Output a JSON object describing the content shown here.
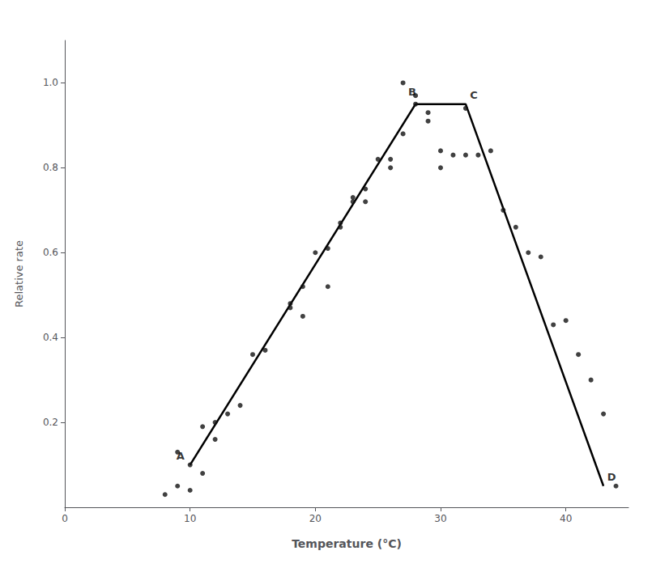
{
  "chart_data": {
    "type": "line",
    "xlabel": "Temperature (°C)",
    "ylabel": "Relative rate",
    "xlim": [
      0,
      45
    ],
    "ylim": [
      0,
      1.1
    ],
    "xticks": [
      0,
      10,
      20,
      30,
      40
    ],
    "yticks": [
      0.2,
      0.4,
      0.6,
      0.8,
      {
        "value": 1,
        "label": "1.0"
      }
    ],
    "grid": false,
    "series": [
      {
        "type": "line",
        "color": "#000000",
        "x": [
          10,
          28,
          32,
          43
        ],
        "values": [
          0.1,
          0.95,
          0.95,
          0.05
        ]
      },
      {
        "type": "scatter",
        "color": "#111111",
        "x": [
          8,
          9,
          9,
          10,
          10,
          11,
          11,
          12,
          12,
          13,
          14,
          15,
          16,
          18,
          18,
          19,
          19,
          20,
          21,
          21,
          22,
          22,
          23,
          23,
          24,
          24,
          25,
          26,
          26,
          27,
          27,
          28,
          28,
          29,
          29,
          30,
          30,
          31,
          32,
          32,
          33,
          34,
          35,
          36,
          37,
          38,
          39,
          40,
          41,
          42,
          43,
          44
        ],
        "values": [
          0.03,
          0.05,
          0.13,
          0.04,
          0.1,
          0.08,
          0.19,
          0.2,
          0.16,
          0.22,
          0.24,
          0.36,
          0.37,
          0.48,
          0.47,
          0.52,
          0.45,
          0.6,
          0.61,
          0.52,
          0.66,
          0.67,
          0.73,
          0.72,
          0.75,
          0.72,
          0.82,
          0.82,
          0.8,
          0.88,
          1.0,
          0.97,
          0.95,
          0.93,
          0.91,
          0.8,
          0.84,
          0.83,
          0.94,
          0.83,
          0.83,
          0.84,
          0.7,
          0.66,
          0.6,
          0.59,
          0.43,
          0.44,
          0.36,
          0.3,
          0.22,
          0.05
        ]
      }
    ],
    "annotations": [
      {
        "text": "A",
        "x": 10,
        "y": 0.1
      },
      {
        "text": "B",
        "x": 28,
        "y": 0.95
      },
      {
        "text": "C",
        "x": 32,
        "y": 0.95
      },
      {
        "text": "D",
        "x": 43,
        "y": 0.05
      }
    ]
  }
}
